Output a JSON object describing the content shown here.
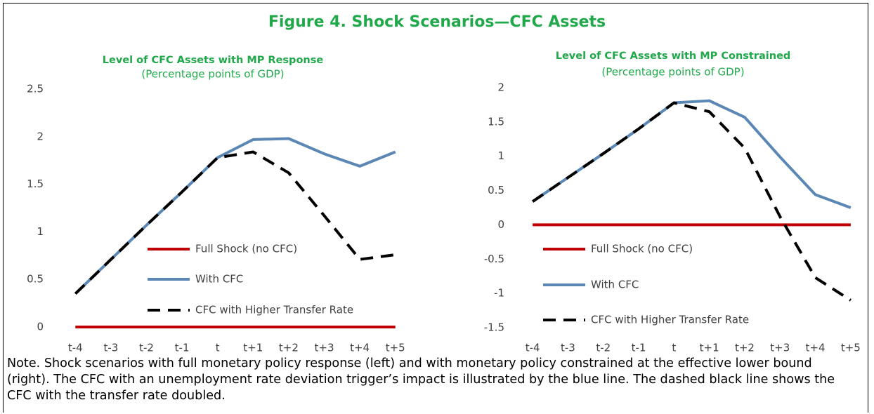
{
  "figure_title": "Figure 4. Shock Scenarios—CFC Assets",
  "note": "Note. Shock scenarios with full monetary policy response (left) and with monetary policy constrained at the effective lower bound (right). The CFC with an unemployment rate deviation trigger’s impact is illustrated by the blue line. The dashed black line shows the CFC with the transfer rate doubled.",
  "chart_data": [
    {
      "type": "line",
      "title": "Level of CFC Assets with MP Response",
      "subtitle": "(Percentage points of GDP)",
      "categories": [
        "t-4",
        "t-3",
        "t-2",
        "t-1",
        "t",
        "t+1",
        "t+2",
        "t+3",
        "t+4",
        "t+5"
      ],
      "series": [
        {
          "name": "Full Shock (no CFC)",
          "color": "#c00000",
          "dash": false,
          "values": [
            0,
            0,
            0,
            0,
            0,
            0,
            0,
            0,
            0,
            0
          ]
        },
        {
          "name": "With CFC",
          "color": "#5b87b5",
          "dash": false,
          "values": [
            0.35,
            0.71,
            1.07,
            1.42,
            1.78,
            1.97,
            1.98,
            1.82,
            1.69,
            1.84
          ]
        },
        {
          "name": "CFC with Higher Transfer Rate",
          "color": "#000000",
          "dash": true,
          "values": [
            0.35,
            0.71,
            1.07,
            1.42,
            1.78,
            1.84,
            1.62,
            1.17,
            0.71,
            0.76
          ]
        }
      ],
      "ylim": [
        0,
        2.5
      ],
      "yticks": [
        0,
        0.5,
        1,
        1.5,
        2,
        2.5
      ],
      "grid": false,
      "legend": "center"
    },
    {
      "type": "line",
      "title": "Level of CFC Assets with MP Constrained",
      "subtitle": "(Percentage points of GDP)",
      "categories": [
        "t-4",
        "t-3",
        "t-2",
        "t-1",
        "t",
        "t+1",
        "t+2",
        "t+3",
        "t+4",
        "t+5"
      ],
      "series": [
        {
          "name": "Full Shock (no CFC)",
          "color": "#c00000",
          "dash": false,
          "values": [
            0,
            0,
            0,
            0,
            0,
            0,
            0,
            0,
            0,
            0
          ]
        },
        {
          "name": "With CFC",
          "color": "#5b87b5",
          "dash": false,
          "values": [
            0.34,
            0.69,
            1.04,
            1.4,
            1.78,
            1.81,
            1.57,
            0.99,
            0.44,
            0.25
          ]
        },
        {
          "name": "CFC with Higher Transfer Rate",
          "color": "#000000",
          "dash": true,
          "values": [
            0.34,
            0.69,
            1.04,
            1.4,
            1.78,
            1.65,
            1.12,
            0.12,
            -0.77,
            -1.1
          ]
        }
      ],
      "ylim": [
        -1.5,
        2
      ],
      "yticks": [
        -1.5,
        -1,
        -0.5,
        0,
        0.5,
        1,
        1.5,
        2
      ],
      "grid": false,
      "legend": "center"
    }
  ]
}
